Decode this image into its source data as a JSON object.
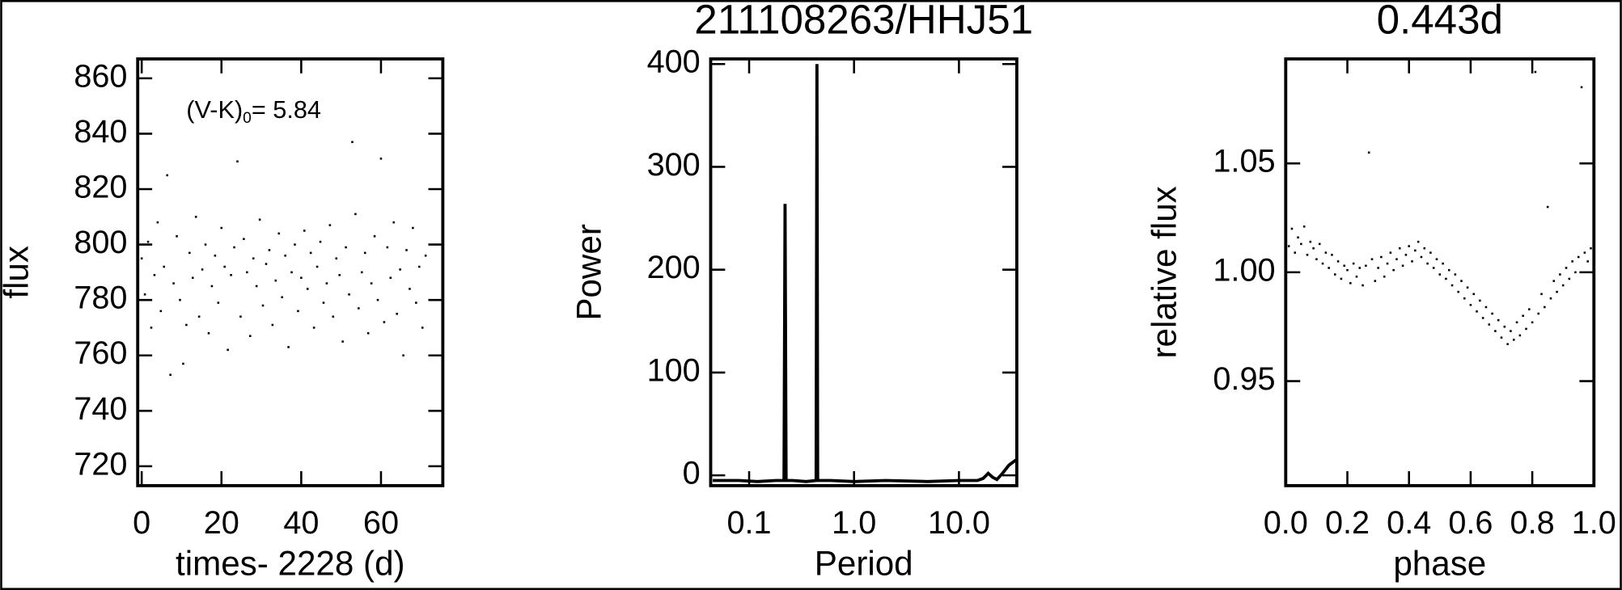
{
  "chart_data": [
    {
      "type": "scatter",
      "x_label": "times- 2228 (d)",
      "y_label": "flux",
      "annotation": {
        "text": "(V-K)",
        "subscript": "0",
        "suffix": "= 5.84"
      },
      "color": "#000000",
      "xlim": [
        -1,
        75.5
      ],
      "ylim": [
        713,
        867
      ],
      "xticks": [
        0,
        20,
        40,
        60
      ],
      "yticks": [
        720,
        740,
        760,
        780,
        800,
        820,
        840,
        860
      ],
      "x": [
        0.0,
        0.8,
        1.6,
        2.4,
        3.2,
        4.0,
        4.8,
        5.6,
        6.4,
        7.2,
        8.0,
        8.8,
        9.6,
        10.4,
        11.2,
        12.0,
        12.8,
        13.6,
        14.4,
        15.2,
        16.0,
        16.8,
        17.6,
        18.4,
        19.2,
        20.0,
        20.8,
        21.6,
        22.4,
        23.2,
        24.0,
        24.8,
        25.6,
        26.4,
        27.2,
        28.0,
        28.8,
        29.6,
        30.4,
        31.2,
        32.0,
        32.8,
        33.6,
        34.4,
        35.2,
        36.0,
        36.8,
        37.6,
        38.4,
        39.2,
        40.0,
        40.8,
        41.6,
        42.4,
        43.2,
        44.0,
        44.8,
        45.6,
        46.4,
        47.2,
        48.0,
        48.8,
        49.6,
        50.4,
        51.2,
        52.0,
        52.8,
        53.6,
        54.4,
        55.2,
        56.0,
        56.8,
        57.6,
        58.4,
        59.2,
        60.0,
        60.8,
        61.6,
        62.4,
        63.2,
        64.0,
        64.8,
        65.6,
        66.4,
        67.2,
        68.0,
        68.8,
        69.6,
        70.4,
        71.2
      ],
      "values": [
        795,
        782,
        801,
        770,
        789,
        808,
        776,
        792,
        825,
        753,
        786,
        803,
        780,
        757,
        771,
        797,
        788,
        810,
        774,
        791,
        800,
        768,
        785,
        796,
        779,
        806,
        792,
        762,
        789,
        799,
        830,
        774,
        802,
        790,
        767,
        795,
        785,
        809,
        778,
        793,
        798,
        771,
        787,
        804,
        781,
        796,
        763,
        790,
        800,
        776,
        788,
        805,
        784,
        797,
        770,
        792,
        801,
        779,
        786,
        807,
        774,
        795,
        789,
        765,
        799,
        782,
        837,
        811,
        777,
        790,
        797,
        768,
        786,
        803,
        780,
        831,
        772,
        799,
        788,
        808,
        775,
        791,
        760,
        798,
        784,
        806,
        779,
        792,
        770,
        796
      ]
    },
    {
      "type": "line",
      "title": "211108263/HHJ51",
      "x_label": "Period",
      "y_label": "Power",
      "xscale": "log",
      "color": "#000000",
      "xlim": [
        0.043,
        35.6
      ],
      "ylim": [
        -10,
        405
      ],
      "xticks": [
        {
          "value": 0.1,
          "label": "0.1"
        },
        {
          "value": 1,
          "label": "1.0"
        },
        {
          "value": 10,
          "label": "10.0"
        }
      ],
      "yticks": [
        0,
        100,
        200,
        300,
        400
      ],
      "x": [
        0.045,
        0.08,
        0.12,
        0.18,
        0.215,
        0.22,
        0.225,
        0.26,
        0.35,
        0.435,
        0.443,
        0.45,
        0.6,
        1,
        2,
        5,
        10,
        15,
        17,
        19,
        21,
        23,
        26,
        30,
        35
      ],
      "values": [
        -5,
        -5,
        -6,
        -5,
        -5,
        264,
        -5,
        -5,
        -6,
        -5,
        400,
        -5,
        -5,
        -6,
        -5,
        -6,
        -5,
        -5,
        -3,
        2,
        -2,
        -4,
        2,
        10,
        15
      ]
    },
    {
      "type": "scatter",
      "title": "0.443d",
      "x_label": "phase",
      "y_label": "relative flux",
      "color": "#000000",
      "xlim": [
        0,
        1
      ],
      "ylim": [
        0.902,
        1.098
      ],
      "xticks": [
        {
          "value": 0,
          "label": "0.0"
        },
        {
          "value": 0.2,
          "label": "0.2"
        },
        {
          "value": 0.4,
          "label": "0.4"
        },
        {
          "value": 0.6,
          "label": "0.6"
        },
        {
          "value": 0.8,
          "label": "0.8"
        },
        {
          "value": 1,
          "label": "1.0"
        }
      ],
      "yticks": [
        0.95,
        {
          "value": 1,
          "label": "1.00"
        },
        1.05
      ],
      "x": [
        0,
        0.01,
        0.02,
        0.03,
        0.04,
        0.05,
        0.06,
        0.07,
        0.08,
        0.09,
        0.1,
        0.11,
        0.12,
        0.13,
        0.14,
        0.15,
        0.16,
        0.17,
        0.18,
        0.19,
        0.2,
        0.21,
        0.22,
        0.23,
        0.24,
        0.25,
        0.26,
        0.27,
        0.28,
        0.29,
        0.3,
        0.31,
        0.32,
        0.33,
        0.34,
        0.35,
        0.36,
        0.37,
        0.38,
        0.39,
        0.4,
        0.41,
        0.42,
        0.43,
        0.44,
        0.45,
        0.46,
        0.47,
        0.48,
        0.49,
        0.5,
        0.51,
        0.52,
        0.53,
        0.54,
        0.55,
        0.56,
        0.57,
        0.58,
        0.59,
        0.6,
        0.61,
        0.62,
        0.63,
        0.64,
        0.65,
        0.66,
        0.67,
        0.68,
        0.69,
        0.7,
        0.71,
        0.72,
        0.73,
        0.74,
        0.75,
        0.76,
        0.77,
        0.78,
        0.79,
        0.8,
        0.81,
        0.82,
        0.83,
        0.84,
        0.85,
        0.86,
        0.87,
        0.88,
        0.89,
        0.9,
        0.91,
        0.92,
        0.93,
        0.94,
        0.95,
        0.96,
        0.97,
        0.98,
        0.99,
        1
      ],
      "values": [
        1.018,
        1.012,
        1.02,
        1.009,
        1.016,
        1.013,
        1.021,
        1.008,
        1.014,
        1.011,
        1.006,
        1.013,
        1.004,
        1.009,
        1.002,
        1.008,
        0.999,
        1.005,
        0.997,
        1.003,
        1.001,
        0.995,
        1.004,
        0.998,
        1.002,
        0.994,
        1.003,
        1.055,
        1.006,
        0.996,
        1.002,
        1.007,
        0.998,
        1.004,
        1.009,
        1.001,
        1.006,
        1.011,
        1.003,
        1.008,
        1.012,
        1.005,
        1.01,
        1.014,
        1.007,
        1.011,
        1.004,
        1.009,
        1.002,
        1.006,
        0.999,
        1.004,
        0.997,
        1.001,
        0.994,
        0.999,
        0.991,
        0.996,
        0.988,
        0.993,
        0.985,
        0.99,
        0.982,
        0.987,
        0.979,
        0.984,
        0.976,
        0.981,
        0.973,
        0.978,
        0.97,
        0.975,
        0.967,
        0.973,
        0.969,
        0.977,
        0.971,
        0.98,
        0.974,
        0.983,
        0.977,
        1.092,
        0.981,
        0.99,
        0.984,
        1.03,
        0.988,
        0.996,
        0.991,
        0.999,
        0.994,
        1.002,
        0.997,
        1.005,
        1,
        1.007,
        1.085,
        1.009,
        1.005,
        1.011,
        1.008
      ]
    }
  ]
}
